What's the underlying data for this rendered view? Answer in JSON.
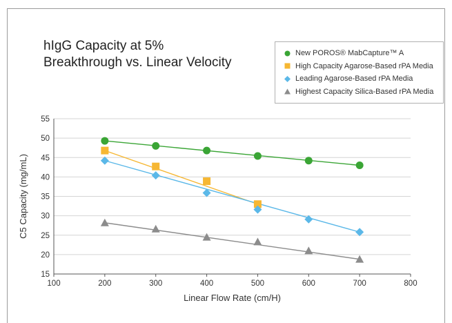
{
  "chart_data": {
    "type": "line",
    "title_lines": [
      "hIgG Capacity at 5%",
      "Breakthrough vs. Linear Velocity"
    ],
    "xlabel": "Linear Flow Rate (cm/H)",
    "ylabel": "C5 Capacity (mg/mL)",
    "xlim": [
      100,
      800
    ],
    "ylim": [
      15,
      55
    ],
    "xticks": [
      100,
      200,
      300,
      400,
      500,
      600,
      700,
      800
    ],
    "yticks": [
      15,
      20,
      25,
      30,
      35,
      40,
      45,
      50,
      55
    ],
    "grid": "horizontal",
    "legend_position": "top-right",
    "series": [
      {
        "name": "New POROS® MabCapture™ A",
        "marker": "circle",
        "color": "#3aa535",
        "points": [
          [
            200,
            49.3
          ],
          [
            300,
            48.0
          ],
          [
            400,
            46.8
          ],
          [
            500,
            45.4
          ],
          [
            600,
            44.2
          ],
          [
            700,
            43.0
          ]
        ]
      },
      {
        "name": "High Capacity Agarose-Based rPA Media",
        "marker": "square",
        "color": "#f6b733",
        "points": [
          [
            200,
            46.8
          ],
          [
            300,
            42.7
          ],
          [
            400,
            38.9
          ],
          [
            500,
            33.0
          ]
        ]
      },
      {
        "name": "Leading Agarose-Based rPA Media",
        "marker": "diamond",
        "color": "#5bb8e8",
        "points": [
          [
            200,
            44.2
          ],
          [
            300,
            40.4
          ],
          [
            400,
            35.9
          ],
          [
            500,
            31.6
          ],
          [
            600,
            29.1
          ],
          [
            700,
            25.8
          ]
        ]
      },
      {
        "name": "Highest Capacity Silica-Based rPA Media",
        "marker": "triangle",
        "color": "#8c8c8c",
        "points": [
          [
            200,
            28.2
          ],
          [
            300,
            26.6
          ],
          [
            400,
            24.5
          ],
          [
            500,
            23.3
          ],
          [
            600,
            21.0
          ],
          [
            700,
            18.8
          ]
        ]
      }
    ]
  }
}
